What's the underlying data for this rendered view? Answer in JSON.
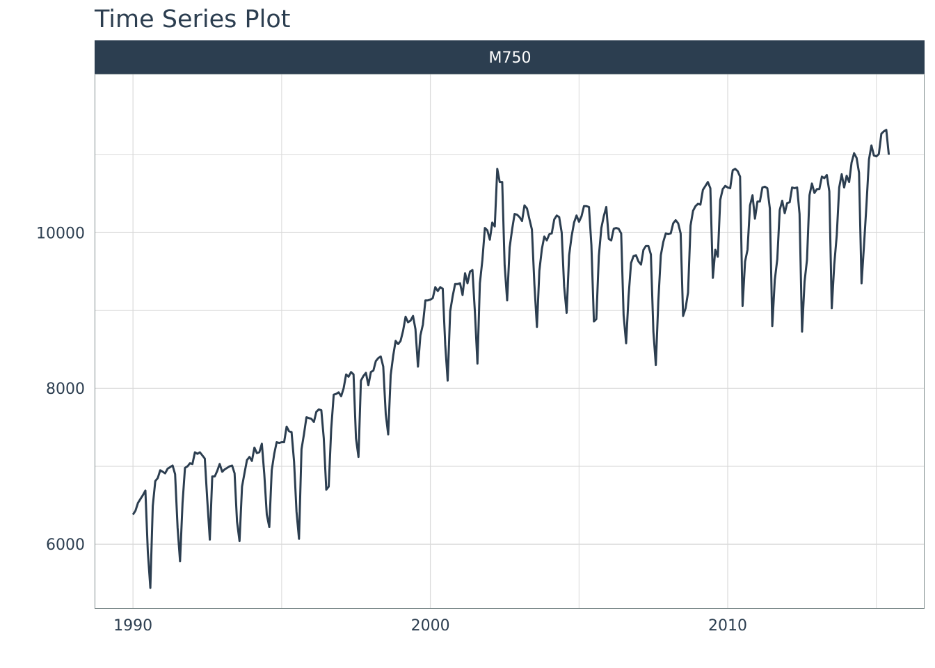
{
  "chart_data": {
    "type": "line",
    "title": "Time Series Plot",
    "xlabel": "",
    "ylabel": "",
    "facet_label": "M750",
    "x_ticks": [
      1990,
      2000,
      2010
    ],
    "y_ticks": [
      6000,
      8000,
      10000
    ],
    "xlim": [
      1988.71,
      2016.62
    ],
    "ylim": [
      5170,
      12040
    ],
    "grid": true,
    "line_color": "#2c3e50",
    "strip_color": "#2c3e50",
    "grid_color": "#d9d9d9",
    "series": [
      {
        "start_year": 1990,
        "frequency": 12,
        "values": [
          6380,
          6430,
          6530,
          6580,
          6630,
          6690,
          5900,
          5440,
          6490,
          6810,
          6850,
          6950,
          6930,
          6910,
          6970,
          6990,
          7010,
          6900,
          6210,
          5780,
          6530,
          6980,
          7000,
          7040,
          7030,
          7180,
          7160,
          7180,
          7140,
          7100,
          6560,
          6060,
          6870,
          6870,
          6940,
          7030,
          6930,
          6960,
          6980,
          7000,
          7010,
          6910,
          6290,
          6040,
          6740,
          6910,
          7080,
          7120,
          7070,
          7240,
          7170,
          7180,
          7290,
          6900,
          6380,
          6220,
          6950,
          7160,
          7310,
          7300,
          7310,
          7310,
          7510,
          7450,
          7440,
          7060,
          6420,
          6070,
          7220,
          7410,
          7630,
          7620,
          7610,
          7570,
          7700,
          7730,
          7720,
          7360,
          6700,
          6740,
          7480,
          7920,
          7930,
          7950,
          7900,
          8000,
          8180,
          8150,
          8210,
          8180,
          7360,
          7120,
          8100,
          8160,
          8200,
          8040,
          8210,
          8230,
          8350,
          8390,
          8410,
          8280,
          7670,
          7410,
          8170,
          8420,
          8610,
          8570,
          8610,
          8740,
          8920,
          8850,
          8870,
          8930,
          8760,
          8280,
          8680,
          8820,
          9130,
          9130,
          9140,
          9160,
          9300,
          9250,
          9300,
          9280,
          8560,
          8100,
          8990,
          9180,
          9340,
          9340,
          9350,
          9200,
          9480,
          9350,
          9500,
          9520,
          8970,
          8320,
          9350,
          9650,
          10060,
          10030,
          9910,
          10130,
          10080,
          10820,
          10650,
          10650,
          9580,
          9130,
          9810,
          10040,
          10240,
          10230,
          10200,
          10150,
          10350,
          10310,
          10170,
          10040,
          9330,
          8790,
          9510,
          9790,
          9950,
          9900,
          9980,
          9990,
          10170,
          10220,
          10200,
          10000,
          9310,
          8970,
          9710,
          9950,
          10130,
          10220,
          10140,
          10210,
          10340,
          10340,
          10330,
          9840,
          8860,
          8890,
          9700,
          10060,
          10210,
          10330,
          9920,
          9900,
          10050,
          10060,
          10050,
          9990,
          8940,
          8580,
          9180,
          9610,
          9700,
          9710,
          9630,
          9590,
          9780,
          9830,
          9830,
          9720,
          8730,
          8300,
          9120,
          9710,
          9880,
          9990,
          9980,
          9990,
          10120,
          10160,
          10120,
          9990,
          8930,
          9030,
          9230,
          10090,
          10280,
          10340,
          10370,
          10360,
          10550,
          10600,
          10650,
          10570,
          9420,
          9780,
          9690,
          10420,
          10560,
          10600,
          10580,
          10570,
          10800,
          10820,
          10790,
          10720,
          9060,
          9630,
          9780,
          10350,
          10480,
          10180,
          10400,
          10400,
          10580,
          10590,
          10570,
          10310,
          8800,
          9390,
          9660,
          10290,
          10410,
          10250,
          10380,
          10390,
          10580,
          10570,
          10580,
          10240,
          8730,
          9370,
          9650,
          10480,
          10630,
          10510,
          10560,
          10560,
          10720,
          10700,
          10740,
          10530,
          9030,
          9590,
          9970,
          10580,
          10750,
          10580,
          10730,
          10650,
          10900,
          11020,
          10960,
          10770,
          9350,
          9830,
          10360,
          10940,
          11120,
          10990,
          10980,
          11010,
          11270,
          11300,
          11320,
          11000
        ]
      }
    ]
  }
}
